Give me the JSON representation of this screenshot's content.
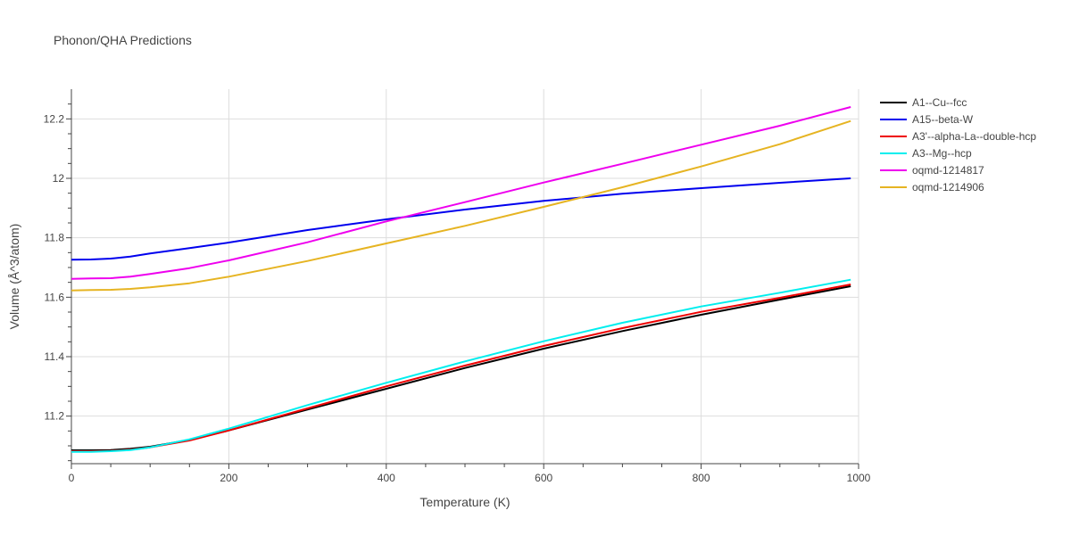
{
  "chart_data": {
    "type": "line",
    "title": "Phonon/QHA Predictions",
    "xlabel": "Temperature (K)",
    "ylabel": "Volume (Å^3/atom)",
    "xlim": [
      0,
      1000
    ],
    "ylim": [
      11.04,
      12.3
    ],
    "xticks": [
      0,
      200,
      400,
      600,
      800,
      1000
    ],
    "yticks": [
      11.2,
      11.4,
      11.6,
      11.8,
      12,
      12.2
    ],
    "xtick_labels": [
      "0",
      "200",
      "400",
      "600",
      "800",
      "1000"
    ],
    "ytick_labels": [
      "11.2",
      "11.4",
      "11.6",
      "11.8",
      "12",
      "12.2"
    ],
    "grid": true,
    "legend_position": "top-right outside",
    "x": [
      0,
      25,
      50,
      75,
      100,
      150,
      200,
      300,
      400,
      500,
      600,
      700,
      800,
      900,
      990
    ],
    "series": [
      {
        "name": "A1--Cu--fcc",
        "color": "#000000",
        "values": [
          11.085,
          11.085,
          11.086,
          11.09,
          11.097,
          11.12,
          11.152,
          11.222,
          11.292,
          11.362,
          11.427,
          11.486,
          11.541,
          11.592,
          11.637
        ]
      },
      {
        "name": "A15--beta-W",
        "color": "#0000ee",
        "values": [
          11.726,
          11.727,
          11.73,
          11.737,
          11.747,
          11.765,
          11.784,
          11.826,
          11.862,
          11.895,
          11.924,
          11.948,
          11.967,
          11.985,
          12.0
        ]
      },
      {
        "name": "A3'--alpha-La--double-hcp",
        "color": "#ee0000",
        "values": [
          11.082,
          11.082,
          11.083,
          11.087,
          11.095,
          11.118,
          11.152,
          11.226,
          11.3,
          11.37,
          11.436,
          11.496,
          11.551,
          11.598,
          11.643
        ]
      },
      {
        "name": "A3--Mg--hcp",
        "color": "#00eeee",
        "values": [
          11.08,
          11.08,
          11.082,
          11.086,
          11.095,
          11.122,
          11.158,
          11.237,
          11.312,
          11.384,
          11.452,
          11.514,
          11.569,
          11.615,
          11.659
        ]
      },
      {
        "name": "oqmd-1214817",
        "color": "#ee00ee",
        "values": [
          11.662,
          11.663,
          11.664,
          11.669,
          11.678,
          11.698,
          11.724,
          11.785,
          11.855,
          11.92,
          11.986,
          12.049,
          12.113,
          12.177,
          12.24
        ]
      },
      {
        "name": "oqmd-1214906",
        "color": "#e6b422",
        "values": [
          11.623,
          11.624,
          11.625,
          11.628,
          11.633,
          11.647,
          11.669,
          11.722,
          11.781,
          11.84,
          11.904,
          11.97,
          12.04,
          12.115,
          12.193
        ]
      }
    ]
  }
}
